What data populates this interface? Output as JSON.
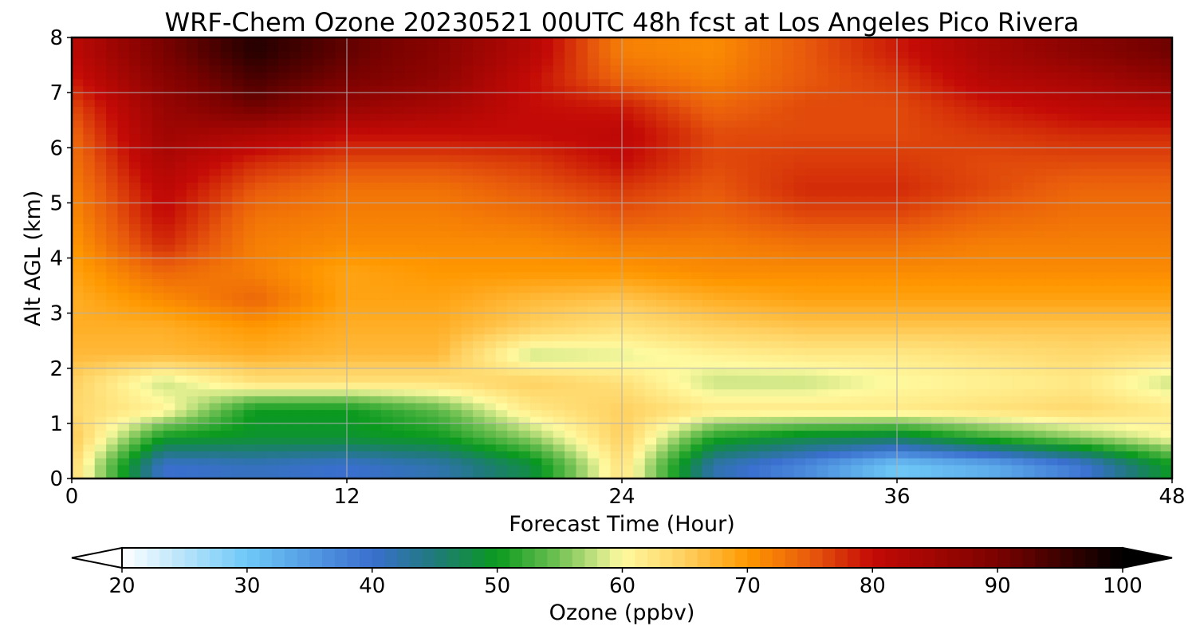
{
  "chart_data": {
    "type": "heatmap",
    "title": "WRF-Chem Ozone  20230521 00UTC 48h fcst at Los Angeles Pico Rivera",
    "xlabel": "Forecast Time (Hour)",
    "ylabel": "Alt AGL (km)",
    "xlim": [
      0,
      48
    ],
    "ylim": [
      0,
      8
    ],
    "xticks": [
      0,
      12,
      24,
      36,
      48
    ],
    "yticks": [
      0,
      1,
      2,
      3,
      4,
      5,
      6,
      7,
      8
    ],
    "grid": true,
    "x": [
      0,
      4,
      8,
      12,
      16,
      20,
      24,
      28,
      32,
      36,
      40,
      44,
      48
    ],
    "y": [
      0.25,
      0.75,
      1.25,
      1.75,
      2.25,
      2.75,
      3.25,
      3.75,
      4.25,
      4.75,
      5.25,
      5.75,
      6.25,
      6.75,
      7.25,
      7.75
    ],
    "z": [
      [
        64,
        40,
        41,
        40,
        42,
        48,
        63,
        42,
        37,
        30,
        33,
        39,
        50
      ],
      [
        66,
        50,
        49,
        49,
        50,
        56,
        65,
        51,
        48,
        47,
        52,
        56,
        60
      ],
      [
        64,
        61,
        50,
        50,
        54,
        62,
        65,
        62,
        62,
        62,
        63,
        64,
        62
      ],
      [
        65,
        58,
        63,
        63,
        63,
        65,
        63,
        58,
        58,
        60,
        61,
        62,
        58
      ],
      [
        67,
        67,
        68,
        67,
        67,
        58,
        59,
        61,
        62,
        62,
        63,
        64,
        63
      ],
      [
        68,
        68,
        70,
        68,
        68,
        65,
        63,
        65,
        66,
        66,
        66,
        66,
        66
      ],
      [
        68,
        71,
        74,
        69,
        69,
        67,
        66,
        68,
        69,
        69,
        69,
        69,
        69
      ],
      [
        69,
        74,
        72,
        69,
        70,
        70,
        70,
        71,
        71,
        71,
        71,
        71,
        71
      ],
      [
        70,
        78,
        72,
        71,
        71,
        71,
        72,
        72,
        73,
        73,
        72,
        72,
        72
      ],
      [
        71,
        80,
        73,
        72,
        72,
        73,
        75,
        74,
        76,
        76,
        74,
        73,
        73
      ],
      [
        72,
        81,
        75,
        73,
        73,
        75,
        77,
        75,
        78,
        78,
        76,
        74,
        74
      ],
      [
        73,
        83,
        78,
        76,
        76,
        77,
        80,
        76,
        77,
        77,
        76,
        76,
        76
      ],
      [
        74,
        85,
        83,
        80,
        80,
        80,
        81,
        76,
        76,
        76,
        77,
        78,
        78
      ],
      [
        76,
        86,
        91,
        86,
        84,
        80,
        79,
        74,
        76,
        76,
        79,
        81,
        82
      ],
      [
        79,
        88,
        94,
        90,
        87,
        80,
        74,
        72,
        75,
        77,
        82,
        84,
        87
      ],
      [
        81,
        90,
        97,
        92,
        88,
        82,
        72,
        71,
        75,
        79,
        84,
        88,
        91
      ]
    ],
    "colorbar": {
      "label": "Ozone  (ppbv)",
      "min": 20,
      "max": 100,
      "ticks": [
        20,
        30,
        40,
        50,
        60,
        70,
        80,
        90,
        100
      ],
      "extend": "both",
      "stops": [
        {
          "v": 20,
          "c": "#ffffff"
        },
        {
          "v": 30,
          "c": "#6ec8f7"
        },
        {
          "v": 40,
          "c": "#3a6fcf"
        },
        {
          "v": 45,
          "c": "#1f7a7a"
        },
        {
          "v": 50,
          "c": "#0a9a1e"
        },
        {
          "v": 55,
          "c": "#74c255"
        },
        {
          "v": 60,
          "c": "#fffaa0"
        },
        {
          "v": 65,
          "c": "#ffd060"
        },
        {
          "v": 70,
          "c": "#ff9800"
        },
        {
          "v": 75,
          "c": "#e85a0c"
        },
        {
          "v": 80,
          "c": "#c40a06"
        },
        {
          "v": 90,
          "c": "#7a0200"
        },
        {
          "v": 100,
          "c": "#000000"
        }
      ]
    }
  }
}
